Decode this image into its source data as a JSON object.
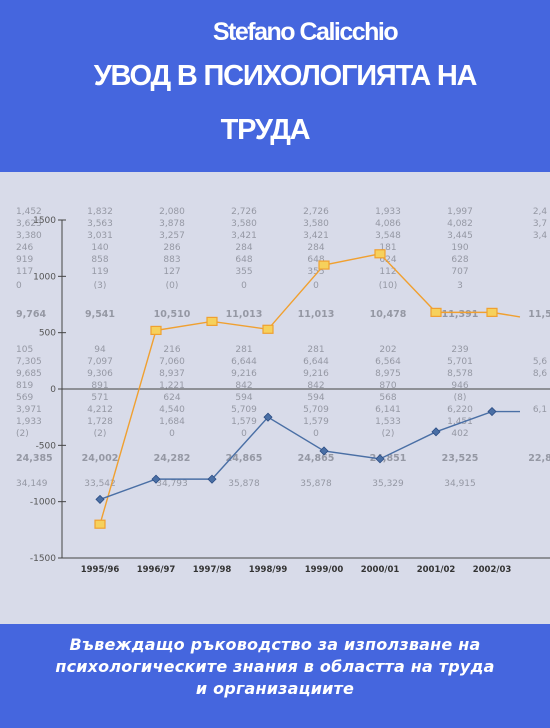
{
  "cover": {
    "author": "Stefano Calicchio",
    "title_lines": [
      "УВОД В ПСИХОЛОГИЯТА НА",
      "ТРУДА"
    ],
    "subtitle_lines": [
      "Въвеждащо ръководство за използване на",
      "психологическите знания в областта на труда",
      "и организациите"
    ]
  },
  "colors": {
    "band": "#4566de",
    "chart_background": "#d8dbe9",
    "upper_series": "#f0a030",
    "lower_series": "#4a6fa5",
    "table_text": "#8a8d98"
  },
  "chart_data": {
    "type": "line",
    "x": [
      "1995/96",
      "1996/97",
      "1997/98",
      "1998/99",
      "1999/00",
      "2000/01",
      "2001/02",
      "2002/03",
      ""
    ],
    "series": [
      {
        "values": [
          -1200,
          520,
          600,
          530,
          1100,
          1200,
          680,
          680,
          640
        ]
      },
      {
        "values": [
          -980,
          -800,
          -800,
          -250,
          -550,
          -620,
          -380,
          -200,
          -200
        ]
      }
    ],
    "y_tick_labels": [
      "1500",
      "1000",
      "500",
      "0",
      "-500",
      "-1000",
      "-1500"
    ],
    "ylim": [
      -1500,
      1500
    ],
    "grid": false,
    "table_columns": [
      [
        "1,452",
        "3,623",
        "3,380",
        "246",
        "919",
        "117",
        "0",
        "9,764",
        "105",
        "7,305",
        "9,685",
        "819",
        "569",
        "3,971",
        "1,933",
        "(2)",
        "24,385",
        "34,149"
      ],
      [
        "1,832",
        "3,563",
        "3,031",
        "140",
        "858",
        "119",
        "(3)",
        "9,541",
        "94",
        "7,097",
        "9,306",
        "891",
        "571",
        "4,212",
        "1,728",
        "(2)",
        "24,002",
        "33,542"
      ],
      [
        "2,080",
        "3,878",
        "3,257",
        "286",
        "883",
        "127",
        "(0)",
        "10,510",
        "216",
        "7,060",
        "8,937",
        "1,221",
        "624",
        "4,540",
        "1,684",
        "0",
        "24,282",
        "34,793"
      ],
      [
        "2,726",
        "3,580",
        "3,421",
        "284",
        "648",
        "355",
        "0",
        "11,013",
        "281",
        "6,644",
        "9,216",
        "842",
        "594",
        "5,709",
        "1,579",
        "0",
        "24,865",
        "35,878"
      ],
      [
        "2,726",
        "3,580",
        "3,421",
        "284",
        "648",
        "355",
        "0",
        "11,013",
        "281",
        "6,644",
        "9,216",
        "842",
        "594",
        "5,709",
        "1,579",
        "0",
        "24,865",
        "35,878"
      ],
      [
        "1,933",
        "4,086",
        "3,548",
        "181",
        "624",
        "112",
        "(10)",
        "10,478",
        "202",
        "6,564",
        "8,975",
        "870",
        "568",
        "6,141",
        "1,533",
        "(2)",
        "24,851",
        "35,329"
      ],
      [
        "1,997",
        "4,082",
        "3,445",
        "190",
        "628",
        "707",
        "3",
        "11,391",
        "239",
        "5,701",
        "8,578",
        "946",
        "(8)",
        "6,220",
        "1,451",
        "402",
        "23,525",
        "34,915"
      ],
      [
        "2,4",
        "3,7",
        "3,4",
        "",
        "",
        "",
        "",
        "11,5",
        "",
        "5,6",
        "8,6",
        "",
        "",
        "6,1",
        "",
        "",
        "22,8",
        ""
      ]
    ]
  }
}
